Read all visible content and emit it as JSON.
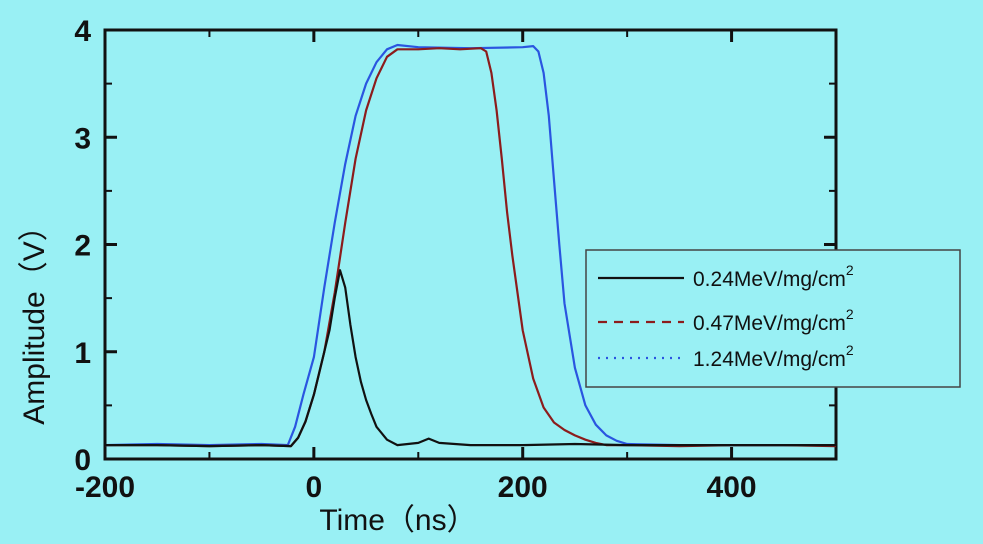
{
  "chart_data": {
    "type": "line",
    "xlabel": "Time（ns）",
    "ylabel": "Amplitude（V）",
    "xlim": [
      -200,
      500
    ],
    "ylim": [
      0,
      4
    ],
    "xticks": [
      -200,
      0,
      200,
      400
    ],
    "yticks": [
      0,
      1,
      2,
      3,
      4
    ],
    "grid": false,
    "legend_position": "center-right",
    "background_color": "#99f0f4",
    "series": [
      {
        "name": "0.24MeV/mg/cm²",
        "label_base": "0.24MeV/mg/cm",
        "label_sup": "2",
        "color": "#111111",
        "dash": "solid",
        "x": [
          -200,
          -150,
          -100,
          -50,
          -22,
          -15,
          -8,
          0,
          5,
          10,
          15,
          20,
          25,
          30,
          35,
          40,
          45,
          50,
          55,
          60,
          70,
          80,
          100,
          110,
          120,
          150,
          200,
          250,
          300,
          350,
          400,
          450,
          500
        ],
        "y": [
          0.13,
          0.13,
          0.12,
          0.13,
          0.12,
          0.2,
          0.35,
          0.6,
          0.8,
          1.0,
          1.2,
          1.5,
          1.76,
          1.6,
          1.25,
          0.95,
          0.72,
          0.55,
          0.42,
          0.3,
          0.18,
          0.13,
          0.15,
          0.19,
          0.15,
          0.13,
          0.13,
          0.14,
          0.13,
          0.13,
          0.13,
          0.13,
          0.13
        ]
      },
      {
        "name": "0.47MeV/mg/cm²",
        "label_base": "0.47MeV/mg/cm",
        "label_sup": "2",
        "color": "#8c1c1c",
        "dash": "dashed",
        "x": [
          -200,
          -150,
          -100,
          -50,
          -22,
          -15,
          -8,
          0,
          10,
          20,
          30,
          40,
          50,
          60,
          70,
          80,
          100,
          120,
          140,
          160,
          165,
          170,
          175,
          180,
          185,
          190,
          200,
          210,
          220,
          230,
          240,
          250,
          260,
          270,
          280,
          300,
          350,
          400,
          450,
          500
        ],
        "y": [
          0.13,
          0.13,
          0.12,
          0.13,
          0.12,
          0.2,
          0.35,
          0.6,
          1.0,
          1.55,
          2.2,
          2.8,
          3.25,
          3.55,
          3.75,
          3.82,
          3.82,
          3.83,
          3.82,
          3.83,
          3.8,
          3.6,
          3.25,
          2.8,
          2.3,
          1.9,
          1.2,
          0.75,
          0.48,
          0.34,
          0.27,
          0.22,
          0.18,
          0.15,
          0.13,
          0.13,
          0.12,
          0.13,
          0.13,
          0.12
        ]
      },
      {
        "name": "1.24MeV/mg/cm²",
        "label_base": "1.24MeV/mg/cm",
        "label_sup": "2",
        "color": "#2a55e0",
        "dash": "dotted",
        "x": [
          -200,
          -150,
          -100,
          -50,
          -25,
          -18,
          -10,
          0,
          10,
          20,
          30,
          40,
          50,
          60,
          70,
          80,
          100,
          150,
          200,
          210,
          215,
          220,
          225,
          230,
          235,
          240,
          250,
          260,
          270,
          280,
          290,
          300,
          350,
          400,
          450,
          500
        ],
        "y": [
          0.13,
          0.14,
          0.13,
          0.14,
          0.13,
          0.3,
          0.6,
          0.95,
          1.6,
          2.2,
          2.75,
          3.2,
          3.5,
          3.7,
          3.82,
          3.86,
          3.84,
          3.83,
          3.84,
          3.85,
          3.8,
          3.6,
          3.2,
          2.6,
          2.0,
          1.45,
          0.85,
          0.5,
          0.32,
          0.22,
          0.17,
          0.14,
          0.13,
          0.13,
          0.13,
          0.13
        ]
      }
    ]
  }
}
